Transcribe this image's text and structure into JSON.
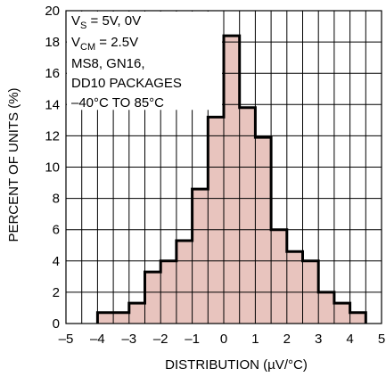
{
  "chart_data": {
    "type": "bar",
    "xlabel": "DISTRIBUTION (µV/°C)",
    "ylabel": "PERCENT OF UNITS (%)",
    "xlim": [
      -5,
      5
    ],
    "ylim": [
      0,
      20
    ],
    "x_ticks": [
      -5,
      -4,
      -3,
      -2,
      -1,
      0,
      1,
      2,
      3,
      4,
      5
    ],
    "x_tick_labels": [
      "–5",
      "–4",
      "–3",
      "–2",
      "–1",
      "0",
      "1",
      "2",
      "3",
      "4",
      "5"
    ],
    "y_ticks": [
      0,
      2,
      4,
      6,
      8,
      10,
      12,
      14,
      16,
      18,
      20
    ],
    "y_tick_labels": [
      "0",
      "2",
      "4",
      "6",
      "8",
      "10",
      "12",
      "14",
      "16",
      "18",
      "20"
    ],
    "grid": true,
    "bin_width": 0.5,
    "bins": [
      {
        "x0": -4.0,
        "value": 0.7
      },
      {
        "x0": -3.5,
        "value": 0.7
      },
      {
        "x0": -3.0,
        "value": 1.3
      },
      {
        "x0": -2.5,
        "value": 3.3
      },
      {
        "x0": -2.0,
        "value": 4.0
      },
      {
        "x0": -1.5,
        "value": 5.3
      },
      {
        "x0": -1.0,
        "value": 8.6
      },
      {
        "x0": -0.5,
        "value": 13.2
      },
      {
        "x0": 0.0,
        "value": 18.4
      },
      {
        "x0": 0.5,
        "value": 13.8
      },
      {
        "x0": 1.0,
        "value": 11.9
      },
      {
        "x0": 1.5,
        "value": 6.0
      },
      {
        "x0": 2.0,
        "value": 4.6
      },
      {
        "x0": 2.5,
        "value": 4.0
      },
      {
        "x0": 3.0,
        "value": 2.0
      },
      {
        "x0": 3.5,
        "value": 1.3
      },
      {
        "x0": 4.0,
        "value": 0.7
      }
    ],
    "annotation": {
      "line1_main": "V",
      "line1_sub": "S",
      "line1_rest": " = 5V, 0V",
      "line2_main": "V",
      "line2_sub": "CM",
      "line2_rest": " = 2.5V",
      "line3": "MS8, GN16,",
      "line4": "DD10 PACKAGES",
      "line5": "–40°C TO 85°C"
    }
  }
}
